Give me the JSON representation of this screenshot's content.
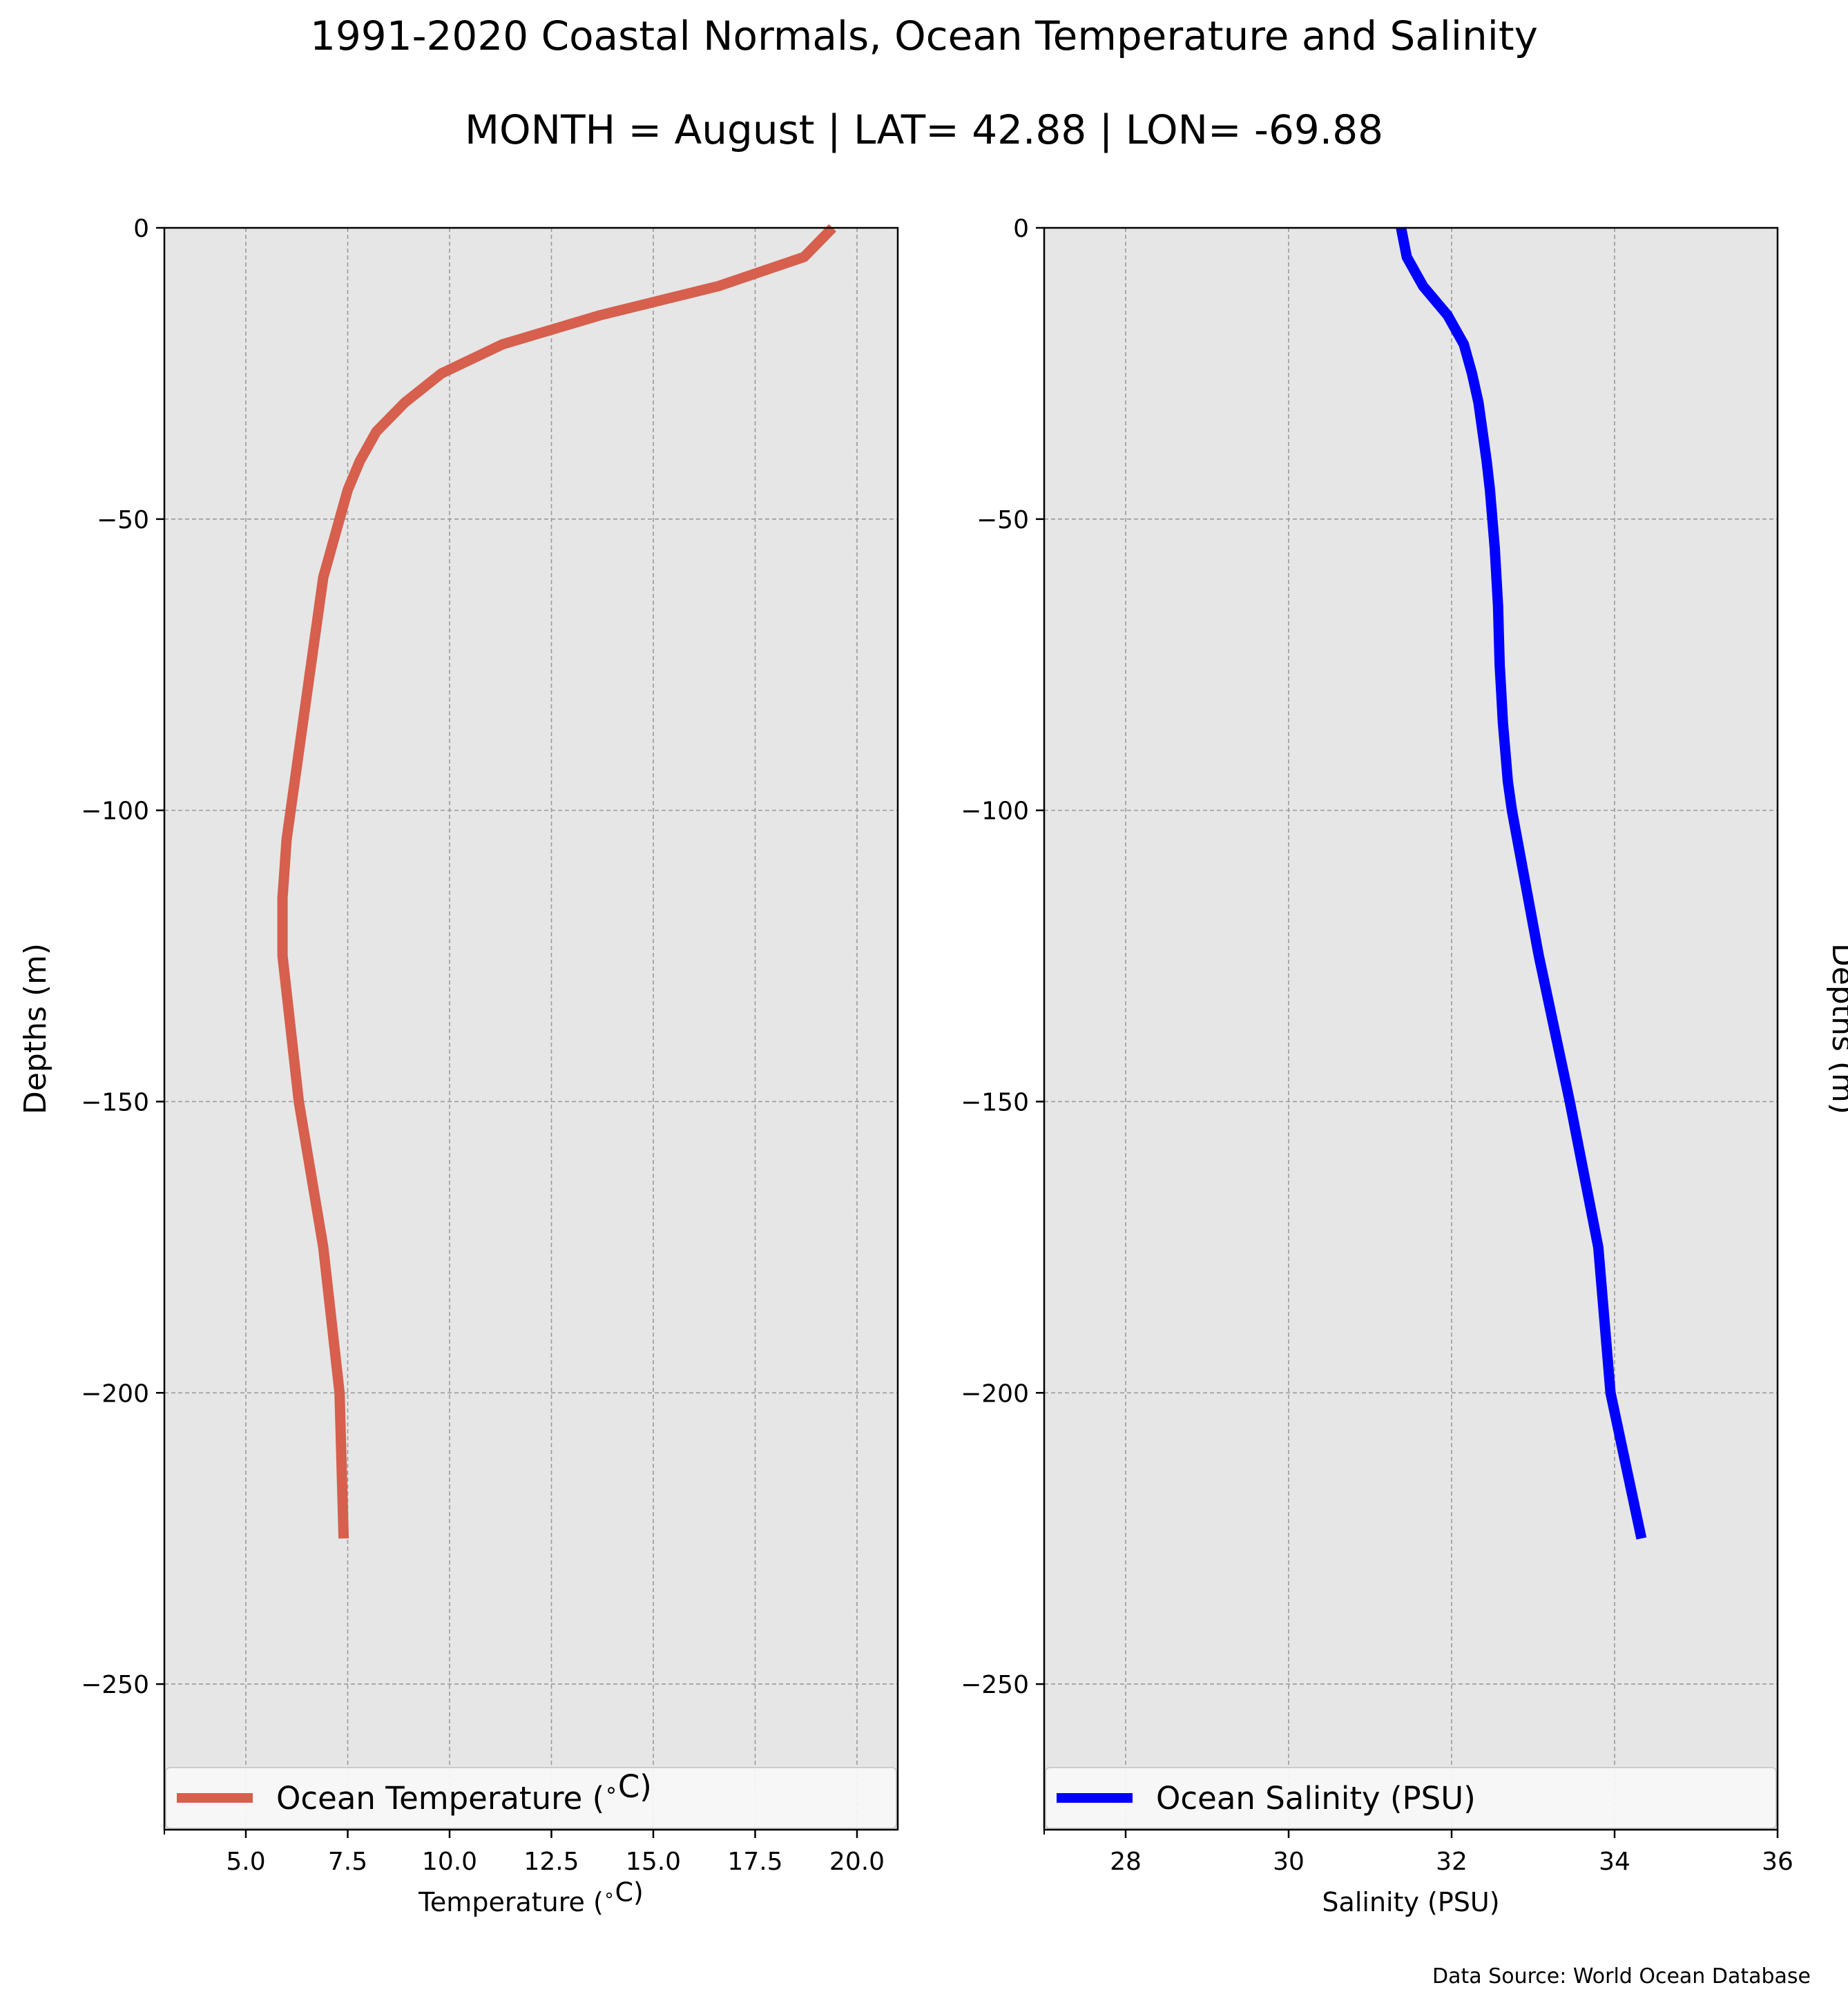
{
  "figure": {
    "title": "1991-2020 Coastal Normals, Ocean Temperature and Salinity",
    "subtitle": "MONTH = August | LAT= 42.88 | LON= -69.88",
    "source": "Data Source: World Ocean Database"
  },
  "chart_data": [
    {
      "type": "line",
      "title": "",
      "xlabel": "Temperature ($^\\circ$C)",
      "ylabel": "Depths (m)",
      "ylabel_side": "left",
      "xlim": [
        3.0,
        21.0
      ],
      "ylim": [
        -275,
        0
      ],
      "x_ticks": [
        5.0,
        7.5,
        10.0,
        12.5,
        15.0,
        17.5,
        20.0
      ],
      "x_tick_labels": [
        "5.0",
        "7.5",
        "10.0",
        "12.5",
        "15.0",
        "17.5",
        "20.0"
      ],
      "y_ticks": [
        0,
        -50,
        -100,
        -150,
        -200,
        -250
      ],
      "y_tick_labels": [
        "0",
        "−50",
        "−100",
        "−150",
        "−200",
        "−250"
      ],
      "grid": true,
      "legend_position": "bottom",
      "series": [
        {
          "name": "Ocean Temperature ($^\\circ$C)",
          "color": "#d65f4d",
          "x": [
            19.4,
            18.7,
            16.6,
            13.7,
            11.3,
            9.8,
            8.9,
            8.2,
            7.8,
            7.5,
            7.3,
            7.1,
            6.9,
            6.8,
            6.7,
            6.6,
            6.5,
            6.4,
            6.3,
            6.2,
            6.1,
            6.0,
            5.95,
            5.9,
            5.9,
            5.9,
            5.9,
            5.9,
            6.3,
            6.9,
            7.3,
            7.4
          ],
          "y": [
            0,
            -5,
            -10,
            -15,
            -20,
            -25,
            -30,
            -35,
            -40,
            -45,
            -50,
            -55,
            -60,
            -65,
            -70,
            -75,
            -80,
            -85,
            -90,
            -95,
            -100,
            -105,
            -110,
            -115,
            -120,
            -125,
            -125,
            -125,
            -150,
            -175,
            -200,
            -225
          ]
        }
      ]
    },
    {
      "type": "line",
      "title": "",
      "xlabel": "Salinity (PSU)",
      "ylabel": "Depths (m)",
      "ylabel_side": "right",
      "xlim": [
        27,
        36
      ],
      "ylim": [
        -275,
        0
      ],
      "x_ticks": [
        28,
        30,
        32,
        34,
        36
      ],
      "x_tick_labels": [
        "28",
        "30",
        "32",
        "34",
        "36"
      ],
      "y_ticks": [
        0,
        -50,
        -100,
        -150,
        -200,
        -250
      ],
      "y_tick_labels": [
        "0",
        "−50",
        "−100",
        "−150",
        "−200",
        "−250"
      ],
      "grid": true,
      "legend_position": "bottom",
      "series": [
        {
          "name": "Ocean Salinity (PSU)",
          "color": "#0000ff",
          "x": [
            31.38,
            31.45,
            31.65,
            31.95,
            32.15,
            32.25,
            32.33,
            32.38,
            32.43,
            32.47,
            32.5,
            32.53,
            32.55,
            32.57,
            32.58,
            32.59,
            32.61,
            32.63,
            32.66,
            32.69,
            32.74,
            33.07,
            33.45,
            33.8,
            33.95,
            34.33
          ],
          "y": [
            0,
            -5,
            -10,
            -15,
            -20,
            -25,
            -30,
            -35,
            -40,
            -45,
            -50,
            -55,
            -60,
            -65,
            -70,
            -75,
            -80,
            -85,
            -90,
            -95,
            -100,
            -125,
            -150,
            -175,
            -200,
            -225
          ]
        }
      ]
    }
  ]
}
